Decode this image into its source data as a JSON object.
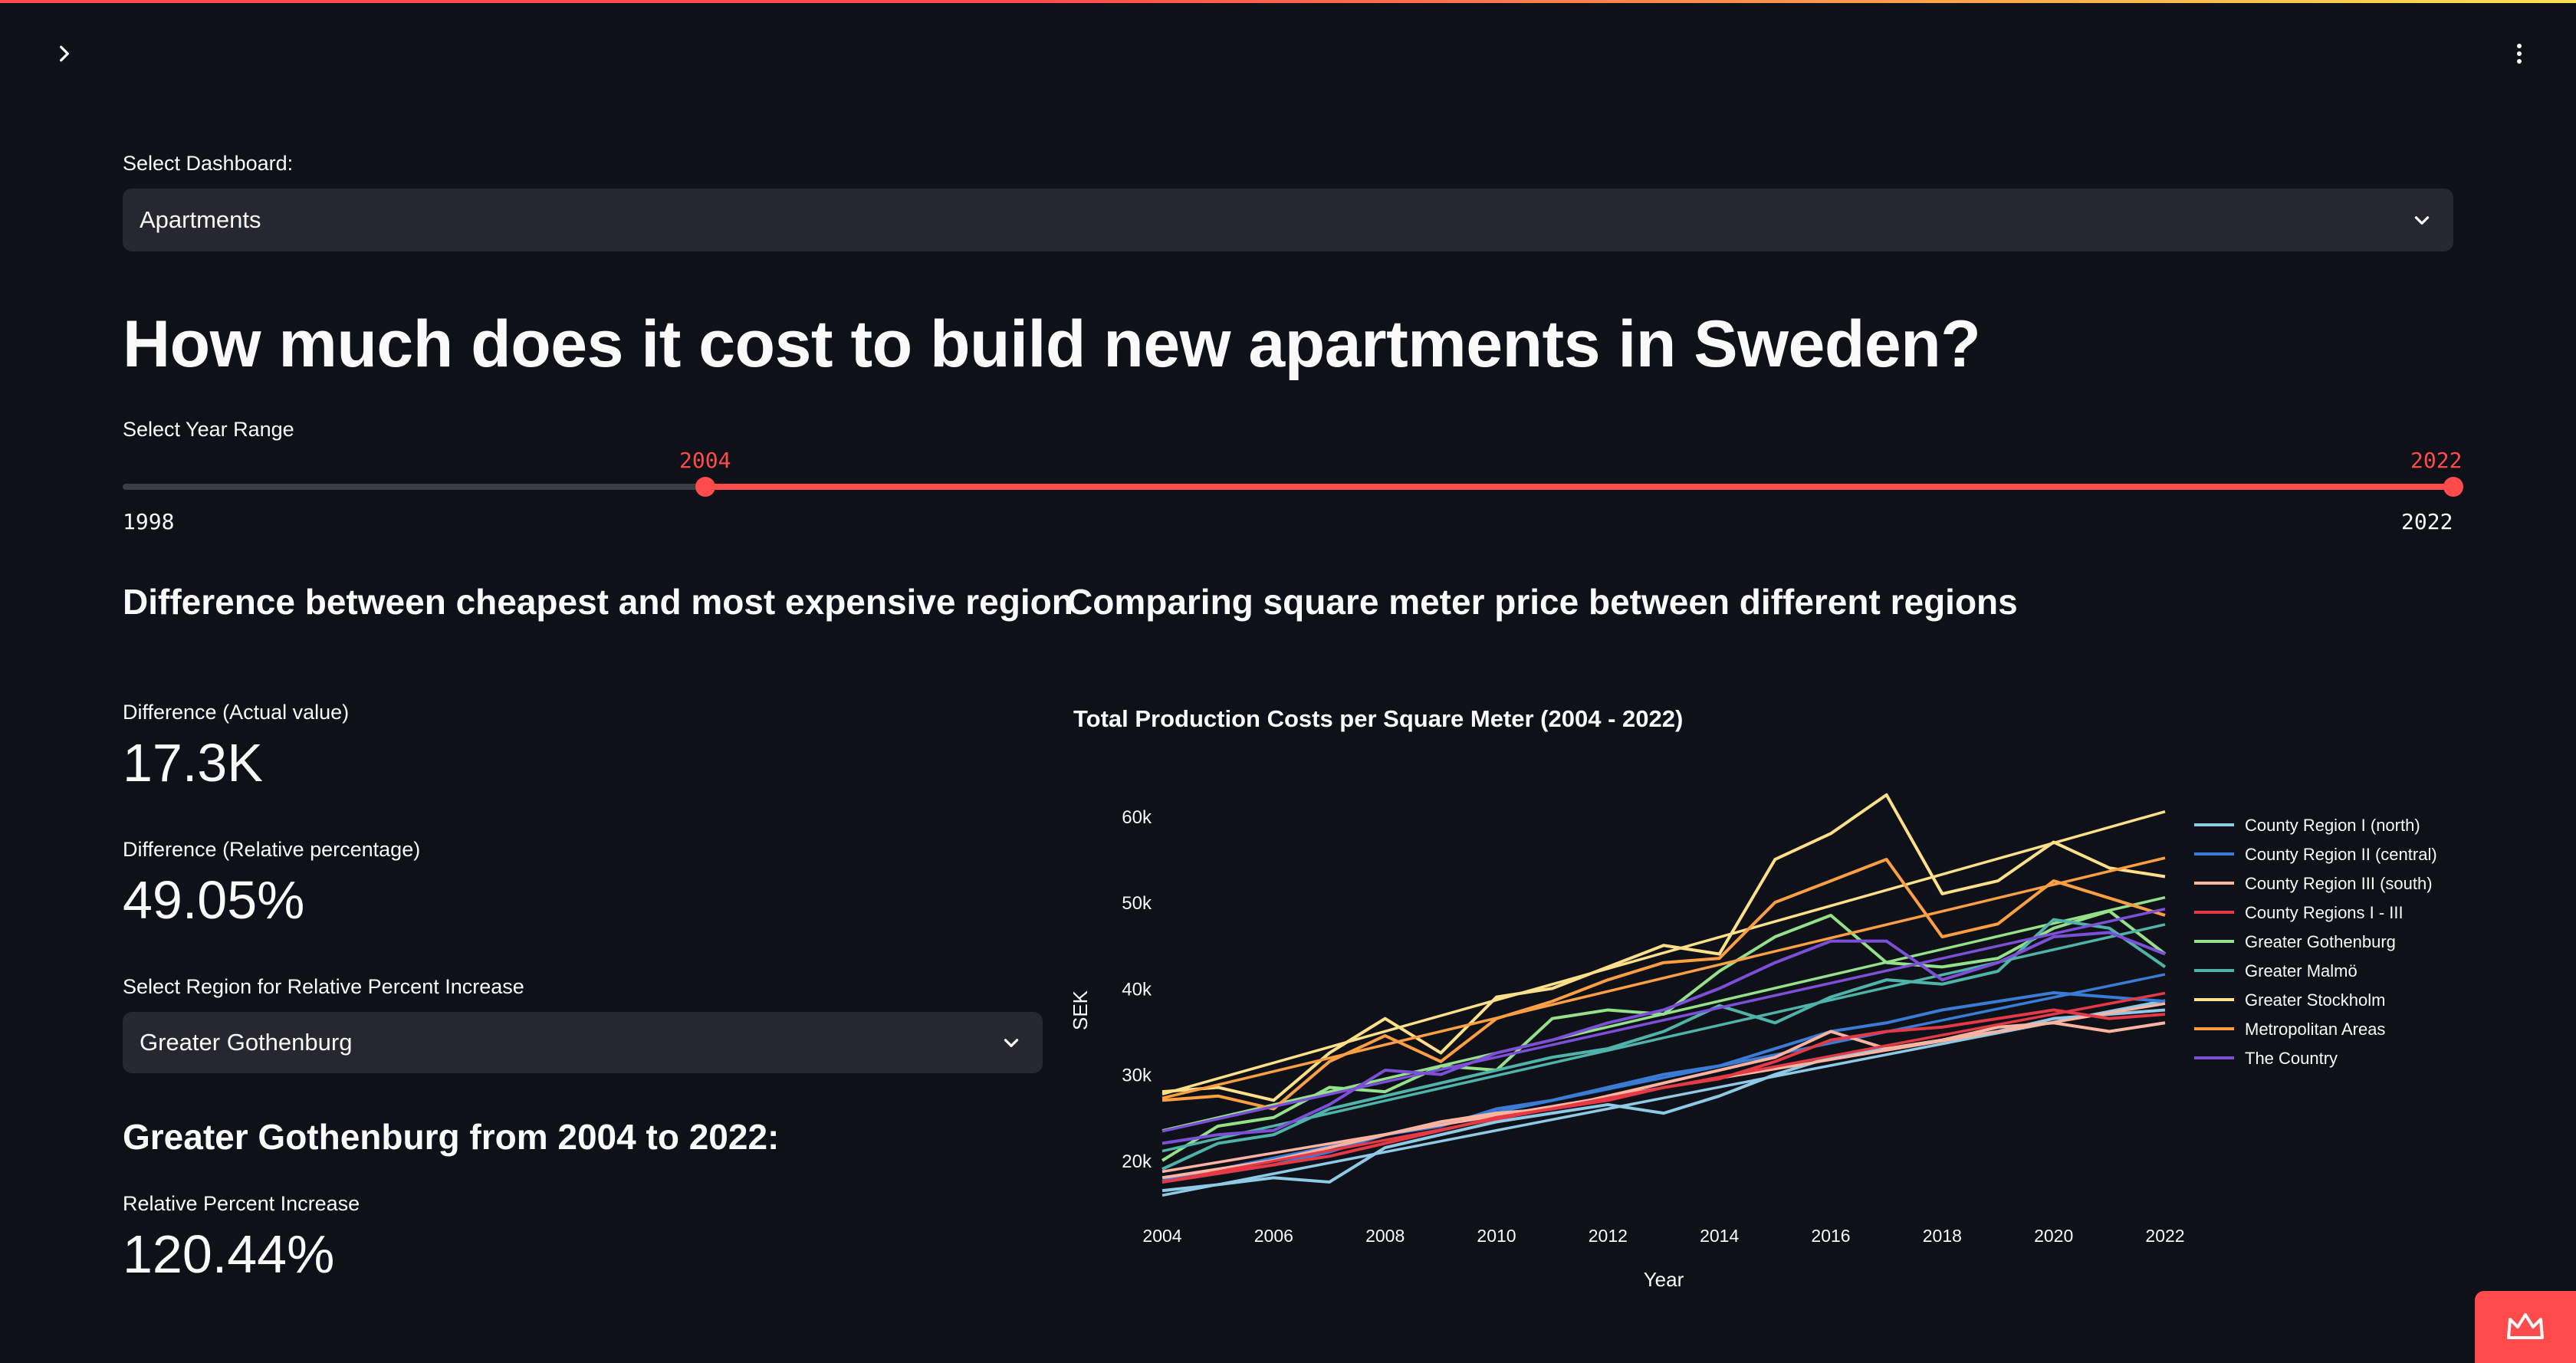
{
  "app": {
    "select_dashboard": {
      "label": "Select Dashboard:",
      "value": "Apartments"
    },
    "main_title": "How much does it cost to build new apartments in Sweden?",
    "year_range": {
      "label": "Select Year Range",
      "min": "1998",
      "max": "2022",
      "selected_start": "2004",
      "selected_end": "2022",
      "start_fraction": 0.25,
      "end_fraction": 1.0
    },
    "left": {
      "title": "Difference between cheapest and most expensive region",
      "metric1": {
        "label": "Difference (Actual value)",
        "value": "17.3K"
      },
      "metric2": {
        "label": "Difference (Relative percentage)",
        "value": "49.05%"
      },
      "region_select": {
        "label": "Select Region for Relative Percent Increase",
        "value": "Greater Gothenburg"
      },
      "subtitle": "Greater Gothenburg from 2004 to 2022:",
      "metric3": {
        "label": "Relative Percent Increase",
        "value": "120.44%"
      }
    },
    "right": {
      "title": "Comparing square meter price between different regions"
    },
    "icons": {
      "sidebar_toggle": "chevron-right-icon",
      "main_menu": "vertical-dots-icon",
      "deploy": "crown-icon"
    },
    "colors": {
      "accent": "#ff4b4b",
      "background": "#0e1117",
      "widget": "#262730"
    }
  },
  "chart_data": {
    "type": "line",
    "title": "Total Production Costs per Square Meter (2004 - 2022)",
    "xlabel": "Year",
    "ylabel": "SEK",
    "xlim": [
      2004,
      2022
    ],
    "ylim": [
      15000,
      64000
    ],
    "x_ticks": [
      "2004",
      "2006",
      "2008",
      "2010",
      "2012",
      "2014",
      "2016",
      "2018",
      "2020",
      "2022"
    ],
    "y_ticks": [
      {
        "value": 20000,
        "label": "20k"
      },
      {
        "value": 30000,
        "label": "30k"
      },
      {
        "value": 40000,
        "label": "40k"
      },
      {
        "value": 50000,
        "label": "50k"
      },
      {
        "value": 60000,
        "label": "60k"
      }
    ],
    "x": [
      2004,
      2005,
      2006,
      2007,
      2008,
      2009,
      2010,
      2011,
      2012,
      2013,
      2014,
      2015,
      2016,
      2017,
      2018,
      2019,
      2020,
      2021,
      2022
    ],
    "legend_position": "right",
    "series": [
      {
        "name": "County Region I (north)",
        "color": "#8ecae6",
        "values": [
          16500,
          17200,
          18000,
          17500,
          21500,
          23000,
          24500,
          25500,
          26500,
          25500,
          27500,
          30000,
          32000,
          33000,
          34000,
          35000,
          36500,
          37000,
          37500
        ]
      },
      {
        "name": "County Region II (central)",
        "color": "#3a7bd5",
        "values": [
          17500,
          18500,
          19500,
          21000,
          23000,
          24000,
          26000,
          27000,
          28500,
          30000,
          31000,
          33000,
          35000,
          36000,
          37500,
          38500,
          39500,
          39000,
          38500
        ]
      },
      {
        "name": "County Region III (south)",
        "color": "#ffb4a2",
        "values": [
          18000,
          19000,
          20000,
          21500,
          23000,
          24500,
          25500,
          26000,
          27500,
          29000,
          30500,
          32000,
          35000,
          33000,
          34000,
          35500,
          36000,
          35000,
          36000
        ]
      },
      {
        "name": "County Regions I - III",
        "color": "#e63946",
        "values": [
          17500,
          18500,
          19500,
          20500,
          22000,
          23500,
          25000,
          26000,
          27000,
          28500,
          29500,
          31500,
          34000,
          35000,
          35500,
          36500,
          37500,
          36500,
          37000
        ]
      },
      {
        "name": "Greater Gothenburg",
        "color": "#95e08a",
        "values": [
          20000,
          24000,
          25000,
          28500,
          28000,
          31000,
          30500,
          36500,
          37500,
          37000,
          42000,
          46000,
          48500,
          43000,
          42500,
          43500,
          47000,
          49000,
          44000
        ]
      },
      {
        "name": "Greater Malmö",
        "color": "#4fb3a9",
        "values": [
          19000,
          22000,
          23000,
          26000,
          27500,
          29000,
          30500,
          32000,
          33000,
          35000,
          38000,
          36000,
          39000,
          41000,
          40500,
          42000,
          48000,
          47000,
          42500
        ]
      },
      {
        "name": "Greater Stockholm",
        "color": "#ffe08a",
        "values": [
          28000,
          28500,
          27000,
          32500,
          36500,
          32500,
          39000,
          40000,
          42500,
          45000,
          44000,
          55000,
          58000,
          62500,
          51000,
          52500,
          57000,
          54000,
          53000
        ]
      },
      {
        "name": "Metropolitan Areas",
        "color": "#ff9f43",
        "values": [
          27000,
          27500,
          26000,
          31500,
          34500,
          31500,
          36500,
          38500,
          41000,
          43000,
          43500,
          50000,
          52500,
          55000,
          46000,
          47500,
          52500,
          50500,
          48500
        ]
      },
      {
        "name": "The Country",
        "color": "#7b4fd6",
        "values": [
          22000,
          23000,
          23500,
          26500,
          30500,
          30000,
          32500,
          34000,
          36000,
          37500,
          40000,
          43000,
          45500,
          45500,
          41000,
          43000,
          46000,
          46500,
          44000
        ]
      }
    ]
  }
}
